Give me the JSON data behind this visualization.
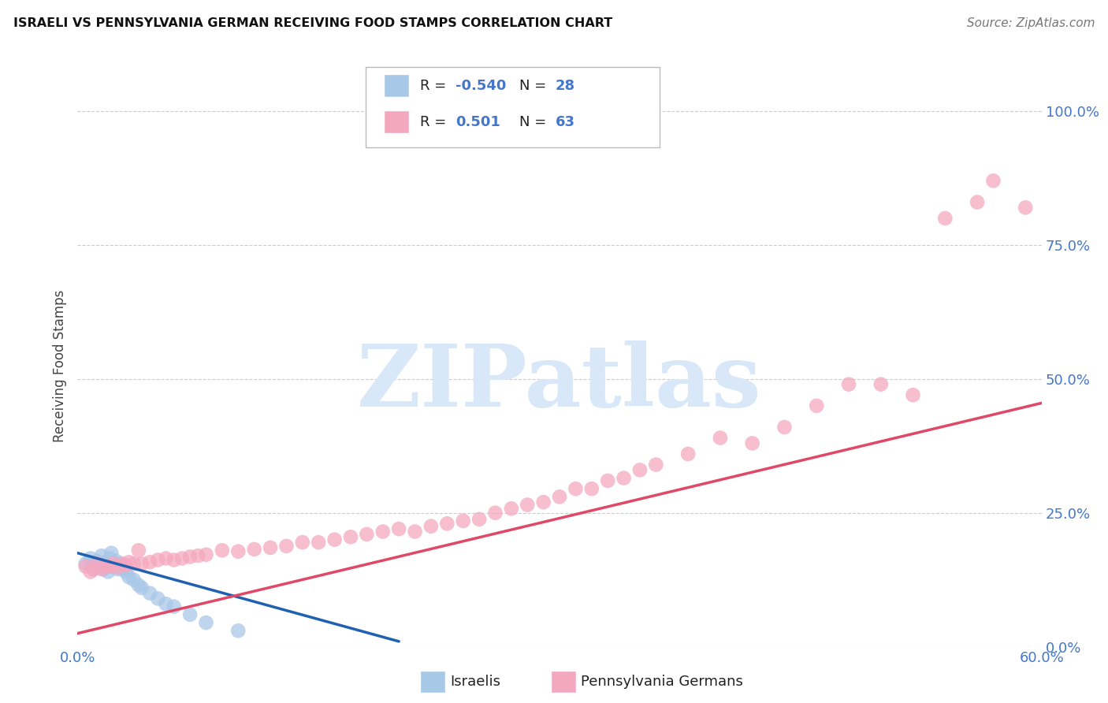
{
  "title": "ISRAELI VS PENNSYLVANIA GERMAN RECEIVING FOOD STAMPS CORRELATION CHART",
  "source": "Source: ZipAtlas.com",
  "ylabel": "Receiving Food Stamps",
  "xlim": [
    0.0,
    0.6
  ],
  "ylim": [
    0.0,
    1.05
  ],
  "xtick_positions": [
    0.0,
    0.6
  ],
  "xticklabels": [
    "0.0%",
    "60.0%"
  ],
  "ytick_positions": [
    0.0,
    0.25,
    0.5,
    0.75,
    1.0
  ],
  "yticklabels": [
    "0.0%",
    "25.0%",
    "50.0%",
    "75.0%",
    "100.0%"
  ],
  "israeli_color": "#a8c8e8",
  "pennger_color": "#f4a8c0",
  "israeli_line_color": "#2060b0",
  "pennger_line_color": "#e04868",
  "watermark_text": "ZIPatlas",
  "watermark_color": "#d8e8f8",
  "background_color": "#ffffff",
  "grid_color": "#cccccc",
  "tick_color": "#4477cc",
  "israeli_x": [
    0.005,
    0.008,
    0.01,
    0.012,
    0.014,
    0.015,
    0.016,
    0.018,
    0.019,
    0.02,
    0.021,
    0.022,
    0.024,
    0.025,
    0.026,
    0.028,
    0.03,
    0.032,
    0.035,
    0.038,
    0.04,
    0.045,
    0.05,
    0.055,
    0.06,
    0.07,
    0.08,
    0.1
  ],
  "israeli_y": [
    0.155,
    0.165,
    0.145,
    0.16,
    0.15,
    0.17,
    0.145,
    0.155,
    0.14,
    0.165,
    0.175,
    0.15,
    0.16,
    0.145,
    0.155,
    0.145,
    0.14,
    0.13,
    0.125,
    0.115,
    0.11,
    0.1,
    0.09,
    0.08,
    0.075,
    0.06,
    0.045,
    0.03
  ],
  "pennger_x": [
    0.005,
    0.008,
    0.01,
    0.012,
    0.015,
    0.018,
    0.02,
    0.022,
    0.025,
    0.028,
    0.03,
    0.032,
    0.035,
    0.038,
    0.04,
    0.045,
    0.05,
    0.055,
    0.06,
    0.065,
    0.07,
    0.075,
    0.08,
    0.09,
    0.1,
    0.11,
    0.12,
    0.13,
    0.14,
    0.15,
    0.16,
    0.17,
    0.18,
    0.19,
    0.2,
    0.21,
    0.22,
    0.23,
    0.24,
    0.25,
    0.26,
    0.27,
    0.28,
    0.29,
    0.3,
    0.31,
    0.32,
    0.33,
    0.34,
    0.35,
    0.36,
    0.38,
    0.4,
    0.42,
    0.44,
    0.46,
    0.48,
    0.5,
    0.52,
    0.54,
    0.56,
    0.57,
    0.59
  ],
  "pennger_y": [
    0.15,
    0.14,
    0.145,
    0.155,
    0.145,
    0.15,
    0.15,
    0.155,
    0.148,
    0.155,
    0.152,
    0.158,
    0.155,
    0.18,
    0.155,
    0.158,
    0.162,
    0.165,
    0.162,
    0.165,
    0.168,
    0.17,
    0.172,
    0.18,
    0.178,
    0.182,
    0.185,
    0.188,
    0.195,
    0.195,
    0.2,
    0.205,
    0.21,
    0.215,
    0.22,
    0.215,
    0.225,
    0.23,
    0.235,
    0.238,
    0.25,
    0.258,
    0.265,
    0.27,
    0.28,
    0.295,
    0.295,
    0.31,
    0.315,
    0.33,
    0.34,
    0.36,
    0.39,
    0.38,
    0.41,
    0.45,
    0.49,
    0.49,
    0.47,
    0.8,
    0.83,
    0.87,
    0.82
  ],
  "israeli_line_x": [
    0.0,
    0.2
  ],
  "israeli_line_y_start": 0.175,
  "israeli_line_y_end": 0.01,
  "pennger_line_x": [
    0.0,
    0.6
  ],
  "pennger_line_y_start": 0.025,
  "pennger_line_y_end": 0.455
}
